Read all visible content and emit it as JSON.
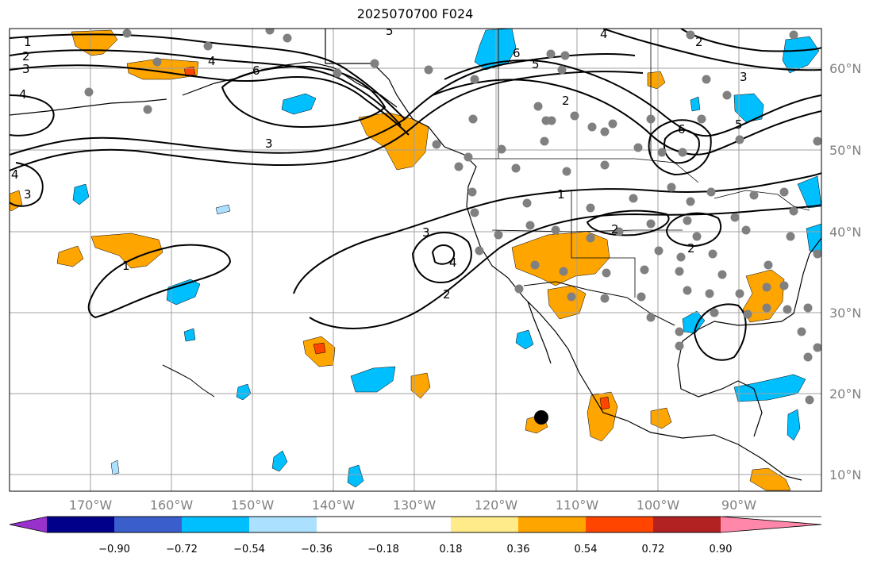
{
  "title": "2025070700 F024",
  "map": {
    "lon_ticks": [
      "170°W",
      "160°W",
      "150°W",
      "140°W",
      "130°W",
      "120°W",
      "110°W",
      "100°W",
      "90°W"
    ],
    "lat_ticks": [
      "60°N",
      "50°N",
      "40°N",
      "30°N",
      "20°N",
      "10°N"
    ],
    "grid": true,
    "fill_colors": {
      "positive_light": "#ffeb8a",
      "positive_mid": "#ffa500",
      "positive_strong": "#ff4500",
      "negative_light": "#ace0ff",
      "negative_mid": "#00bfff"
    },
    "contour_labels": [
      "1",
      "2",
      "3",
      "4",
      "2",
      "4",
      "6",
      "5",
      "6",
      "5",
      "4",
      "3",
      "2",
      "6",
      "5",
      "3",
      "2",
      "1",
      "2",
      "2",
      "3",
      "4",
      "2",
      "1",
      "4",
      "3",
      "6"
    ]
  },
  "colorbar": {
    "tick_labels": [
      "−0.90",
      "−0.72",
      "−0.54",
      "−0.36",
      "−0.18",
      "0.18",
      "0.36",
      "0.54",
      "0.72",
      "0.90"
    ],
    "colors": [
      "#9932cc",
      "#00008b",
      "#3a5fcd",
      "#00bfff",
      "#ace0ff",
      "#ffffff",
      "#ffeb8a",
      "#ffa500",
      "#ff4500",
      "#b22222",
      "#ff88aa"
    ]
  }
}
